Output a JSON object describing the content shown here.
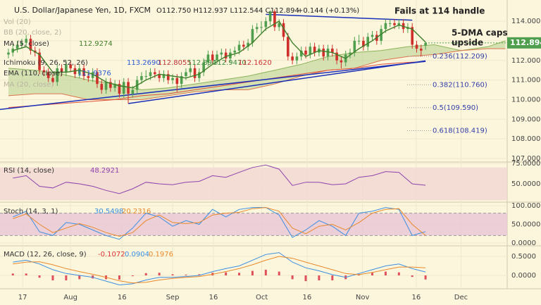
{
  "chart_data": {
    "type": "candlestick",
    "header": {
      "symbol": "U.S. Dollar/Japanese Yen, 1D, FXCM",
      "ohlc": "O112.750 H112.937 L112.544 C112.894",
      "change": "+0.144 (+0.13%)"
    },
    "annotations": [
      "Fails at 114 handle",
      "5-DMA caps",
      "upside"
    ],
    "legends": [
      {
        "name": "Vol (20)"
      },
      {
        "name": "BB (20, close, 2)"
      },
      {
        "name": "MA (5, close)"
      },
      {
        "name": "Ichimoku (9, 26, 52, 26)",
        "values": [
          "113.2690",
          "112.8055",
          "112.894",
          "112.9470",
          "112.1620"
        ]
      },
      {
        "name": "EMA (110, close)"
      },
      {
        "name": "MA (20, close)"
      }
    ],
    "xlim": [
      -1.9,
      112.4
    ],
    "xticks": [
      {
        "value": 3.2,
        "label": "17"
      },
      {
        "value": 14,
        "label": "Aug"
      },
      {
        "value": 25.6,
        "label": "16"
      },
      {
        "value": 37,
        "label": "Sep"
      },
      {
        "value": 46.2,
        "label": "16"
      },
      {
        "value": 57.1,
        "label": "Oct"
      },
      {
        "value": 67.3,
        "label": "16"
      },
      {
        "value": 79.8,
        "label": "Nov"
      },
      {
        "value": 91.9,
        "label": "16"
      },
      {
        "value": 102,
        "label": "Dec"
      }
    ],
    "price": {
      "ylim": [
        106.82,
        115.08
      ],
      "yticks": [
        {
          "value": 107,
          "label": "107.000"
        },
        {
          "value": 108,
          "label": "108.000"
        },
        {
          "value": 109,
          "label": "109.000"
        },
        {
          "value": 110,
          "label": "110.000"
        },
        {
          "value": 111,
          "label": "111.000"
        },
        {
          "value": 112,
          "label": "112.000"
        },
        {
          "value": 113,
          "label": "113.000"
        },
        {
          "value": 114,
          "label": "114.000"
        }
      ],
      "up_color": "#4f9f4f",
      "down_color": "#cf2f2a",
      "candles": {
        "open": [
          112.3,
          112.4,
          112.6,
          112.8,
          112.9,
          113.1,
          112.5,
          112.4,
          111.5,
          111.4,
          111.1,
          110.9,
          111.6,
          111.4,
          111.8,
          111.6,
          111.3,
          111.6,
          111.2,
          111.1,
          111.4,
          110.8,
          110.5,
          110.9,
          110.6,
          110.8,
          110.3,
          110.9,
          110.3,
          110.5,
          111.0,
          111.2,
          111.2,
          111.4,
          111.3,
          111.1,
          111.3,
          111.0,
          111.1,
          110.8,
          111.2,
          111.4,
          111.6,
          111.1,
          111.4,
          111.9,
          112.3,
          112.0,
          112.3,
          112.4,
          112.1,
          112.4,
          112.5,
          112.8,
          112.7,
          112.9,
          113.6,
          113.7,
          113.7,
          114.0,
          114.5,
          113.7,
          113.9,
          113.2,
          112.2,
          112.0,
          112.2,
          112.5,
          112.3,
          112.7,
          112.4,
          112.6,
          112.2,
          112.6,
          112.4,
          112.0,
          111.9,
          112.3,
          112.4,
          113.0,
          113.0,
          112.7,
          113.2,
          113.3,
          113.0,
          113.6,
          113.9,
          113.9,
          113.8,
          113.9,
          113.6,
          113.7,
          112.8,
          112.6,
          112.75
        ],
        "high": [
          112.6,
          112.8,
          113.0,
          113.1,
          113.3,
          113.3,
          112.7,
          112.6,
          111.7,
          111.6,
          111.3,
          111.8,
          111.8,
          112.0,
          112.0,
          111.8,
          111.8,
          111.8,
          111.4,
          111.6,
          111.6,
          111.0,
          111.1,
          111.1,
          111.0,
          111.0,
          111.1,
          111.1,
          110.7,
          111.2,
          111.4,
          111.5,
          111.6,
          111.6,
          111.5,
          111.5,
          111.5,
          111.3,
          111.3,
          111.4,
          111.6,
          111.8,
          111.8,
          111.6,
          112.1,
          112.5,
          112.5,
          112.5,
          112.6,
          112.6,
          112.6,
          112.7,
          113.0,
          113.0,
          113.1,
          113.8,
          113.9,
          114.0,
          114.2,
          114.55,
          114.6,
          114.1,
          114.1,
          113.4,
          112.4,
          112.4,
          112.7,
          112.7,
          112.9,
          112.9,
          112.8,
          112.8,
          112.8,
          112.8,
          112.6,
          112.2,
          112.5,
          112.6,
          113.2,
          113.3,
          113.2,
          113.4,
          113.5,
          113.5,
          113.8,
          114.1,
          114.1,
          114.1,
          114.1,
          114.1,
          113.9,
          113.9,
          113.0,
          112.8,
          112.937
        ],
        "low": [
          112.1,
          112.2,
          112.4,
          112.6,
          112.7,
          112.3,
          112.2,
          111.3,
          111.2,
          110.9,
          110.7,
          110.7,
          111.2,
          111.2,
          111.4,
          111.1,
          111.1,
          111.0,
          110.9,
          110.9,
          110.6,
          110.3,
          110.3,
          110.4,
          110.4,
          110.1,
          110.1,
          109.8,
          110.1,
          110.3,
          110.8,
          111.0,
          111.0,
          111.1,
          110.9,
          110.9,
          110.8,
          110.8,
          110.4,
          110.6,
          111.0,
          111.2,
          110.9,
          110.9,
          111.2,
          111.7,
          111.8,
          111.8,
          112.1,
          111.9,
          111.9,
          112.2,
          112.3,
          112.5,
          112.5,
          112.7,
          113.4,
          113.4,
          113.5,
          113.8,
          113.5,
          113.5,
          113.0,
          112.0,
          111.8,
          111.8,
          112.0,
          112.1,
          112.1,
          112.2,
          112.2,
          112.0,
          112.0,
          112.2,
          111.8,
          111.6,
          111.7,
          112.1,
          112.2,
          112.8,
          112.5,
          112.5,
          113.0,
          112.8,
          112.8,
          113.4,
          113.7,
          113.6,
          113.6,
          113.4,
          113.4,
          112.6,
          112.4,
          112.2,
          112.544
        ],
        "close": [
          112.4,
          112.6,
          112.8,
          112.9,
          113.1,
          112.5,
          112.4,
          111.5,
          111.4,
          111.1,
          110.9,
          111.6,
          111.4,
          111.8,
          111.6,
          111.3,
          111.6,
          111.2,
          111.1,
          111.4,
          110.8,
          110.5,
          110.9,
          110.6,
          110.8,
          110.3,
          110.9,
          110.3,
          110.5,
          111.0,
          111.2,
          111.2,
          111.4,
          111.3,
          111.1,
          111.3,
          111.0,
          111.1,
          110.8,
          111.2,
          111.4,
          111.6,
          111.1,
          111.4,
          111.9,
          112.3,
          112.0,
          112.3,
          112.4,
          112.1,
          112.4,
          112.5,
          112.8,
          112.7,
          112.9,
          113.6,
          113.7,
          113.7,
          114.0,
          114.5,
          113.7,
          113.9,
          113.2,
          112.2,
          112.0,
          112.2,
          112.5,
          112.3,
          112.7,
          112.4,
          112.6,
          112.2,
          112.6,
          112.4,
          112.0,
          111.9,
          112.3,
          112.4,
          113.0,
          113.0,
          112.7,
          113.2,
          113.3,
          113.0,
          113.6,
          113.9,
          113.9,
          113.8,
          113.9,
          113.6,
          113.7,
          112.8,
          112.6,
          112.5,
          112.894
        ]
      },
      "ma": {
        "color": "#3f7f2a",
        "x": [
          1,
          4,
          7,
          10,
          13,
          16,
          19,
          22,
          25,
          28,
          31,
          34,
          37,
          40,
          43,
          46,
          49,
          52,
          55,
          58,
          61,
          64,
          67,
          70,
          73,
          76,
          79,
          82,
          85,
          88,
          91,
          94
        ],
        "values": [
          112.5,
          112.7,
          112.3,
          111.4,
          111.4,
          111.5,
          111.3,
          110.9,
          110.7,
          110.6,
          111.0,
          111.3,
          111.2,
          111.1,
          111.3,
          111.8,
          112.2,
          112.4,
          112.9,
          113.6,
          114.0,
          112.9,
          112.2,
          112.5,
          112.4,
          112.1,
          112.6,
          113.0,
          113.5,
          113.8,
          113.6,
          112.9274
        ]
      },
      "cloud": {
        "color": "#a9c77f",
        "edge_color": "#d9764f",
        "x": [
          0,
          6,
          12,
          18,
          24,
          30,
          36,
          42,
          48,
          54,
          60,
          66,
          72,
          78,
          84,
          90,
          96,
          102,
          108,
          112
        ],
        "span_a": [
          111.6,
          111.5,
          111.3,
          111.0,
          110.8,
          110.5,
          110.6,
          110.8,
          111.0,
          111.2,
          111.5,
          111.8,
          112.2,
          112.4,
          112.5,
          112.7,
          112.8,
          112.5,
          112.7,
          113.0
        ],
        "span_b": [
          110.2,
          110.3,
          110.3,
          110.0,
          110.0,
          110.0,
          110.2,
          110.4,
          110.5,
          110.5,
          110.8,
          111.2,
          111.5,
          111.6,
          112.0,
          112.2,
          112.3,
          112.5,
          112.6,
          112.6
        ]
      },
      "ema": {
        "color": "#e0503a",
        "x": [
          0,
          6,
          12,
          18,
          24,
          30,
          36,
          42,
          48,
          54,
          60,
          66,
          72,
          78,
          84,
          90,
          94
        ],
        "values": [
          109.6,
          109.7,
          109.8,
          109.9,
          110.0,
          110.2,
          110.3,
          110.5,
          110.7,
          110.9,
          111.1,
          111.3,
          111.5,
          111.6,
          111.8,
          111.9,
          111.9376
        ]
      },
      "trend_color": "#1a2fb8",
      "trendlines": [
        {
          "x": [
            -1.9,
            94
          ],
          "y": [
            109.5,
            111.95
          ]
        },
        {
          "x": [
            27,
            94
          ],
          "y": [
            109.8,
            111.98
          ]
        },
        {
          "x": [
            58,
            91
          ],
          "y": [
            114.35,
            114.05
          ]
        }
      ],
      "fib": [
        {
          "label": "0.236(112.209)",
          "value": 112.209
        },
        {
          "label": "0.382(110.760)",
          "value": 110.76
        },
        {
          "label": "0.5(109.590)",
          "value": 109.59
        },
        {
          "label": "0.618(108.419)",
          "value": 108.419
        }
      ],
      "last_color": "#4f9f4f"
    },
    "rsi": {
      "title": "RSI (14, close)",
      "color": "#8e44ad",
      "ylim": [
        27.6,
        76.7
      ],
      "yticks": [
        {
          "value": 50,
          "label": "50.0000"
        },
        {
          "value": 75,
          "label": "75.0000"
        }
      ],
      "band": [
        30,
        70
      ],
      "x": [
        1,
        4,
        7,
        10,
        13,
        16,
        19,
        22,
        25,
        28,
        31,
        34,
        37,
        40,
        43,
        46,
        49,
        52,
        55,
        58,
        61,
        64,
        67,
        70,
        73,
        76,
        79,
        82,
        85,
        88,
        91,
        94
      ],
      "values": [
        57,
        60,
        47,
        45,
        52,
        50,
        47,
        42,
        38,
        44,
        52,
        50,
        49,
        52,
        53,
        60,
        58,
        64,
        70,
        73,
        68,
        48,
        52,
        52,
        49,
        50,
        58,
        60,
        65,
        64,
        50,
        48.2921
      ]
    },
    "stoch": {
      "title": "Stoch (14, 3, 1)",
      "ylim": [
        -7.5,
        109.4
      ],
      "yticks": [
        {
          "value": 0,
          "label": "0.0000"
        },
        {
          "value": 50,
          "label": "50.0000"
        },
        {
          "value": 100,
          "label": "100.0000"
        }
      ],
      "band": [
        20,
        80
      ],
      "x": [
        1,
        4,
        7,
        10,
        13,
        16,
        19,
        22,
        25,
        28,
        31,
        34,
        37,
        40,
        43,
        46,
        49,
        52,
        55,
        58,
        61,
        64,
        67,
        70,
        73,
        76,
        79,
        82,
        85,
        88,
        91,
        94
      ],
      "series": [
        {
          "color": "#3b8ee0",
          "values": [
            70,
            85,
            30,
            20,
            55,
            50,
            35,
            20,
            10,
            40,
            80,
            70,
            45,
            60,
            50,
            90,
            70,
            90,
            95,
            95,
            75,
            15,
            35,
            60,
            45,
            20,
            80,
            85,
            95,
            90,
            20,
            30.5498
          ]
        },
        {
          "color": "#e8892b",
          "values": [
            65,
            78,
            50,
            28,
            40,
            52,
            42,
            28,
            18,
            28,
            60,
            75,
            55,
            52,
            55,
            75,
            80,
            82,
            92,
            95,
            85,
            40,
            25,
            45,
            50,
            35,
            55,
            80,
            90,
            92,
            50,
            20.2316
          ]
        }
      ]
    },
    "macd": {
      "title": "MACD (12, 26, close, 9)",
      "ylim": [
        -0.352,
        0.778
      ],
      "yticks": [
        {
          "value": 0,
          "label": "0.0000"
        },
        {
          "value": 0.5,
          "label": "0.5000"
        }
      ],
      "x": [
        1,
        4,
        7,
        10,
        13,
        16,
        19,
        22,
        25,
        28,
        31,
        34,
        37,
        40,
        43,
        46,
        49,
        52,
        55,
        58,
        61,
        64,
        67,
        70,
        73,
        76,
        79,
        82,
        85,
        88,
        91,
        94
      ],
      "hist": {
        "color": "#e0505a",
        "values": [
          0.05,
          0.05,
          -0.06,
          -0.13,
          -0.13,
          -0.1,
          -0.08,
          -0.1,
          -0.11,
          -0.02,
          0.06,
          0.07,
          0.03,
          0.02,
          0.03,
          0.07,
          0.08,
          0.07,
          0.12,
          0.15,
          0.1,
          -0.1,
          -0.15,
          -0.13,
          -0.13,
          -0.1,
          0.03,
          0.07,
          0.1,
          0.08,
          -0.04,
          -0.1072
        ]
      },
      "series": [
        {
          "color": "#3b8ee0",
          "values": [
            0.35,
            0.4,
            0.3,
            0.15,
            0.05,
            0.0,
            -0.05,
            -0.15,
            -0.25,
            -0.22,
            -0.12,
            -0.05,
            -0.05,
            -0.03,
            0.0,
            0.1,
            0.18,
            0.25,
            0.4,
            0.55,
            0.6,
            0.35,
            0.2,
            0.12,
            0.02,
            -0.05,
            0.05,
            0.15,
            0.25,
            0.3,
            0.18,
            0.0904
          ]
        },
        {
          "color": "#e8892b",
          "values": [
            0.3,
            0.35,
            0.36,
            0.28,
            0.18,
            0.1,
            0.03,
            -0.05,
            -0.14,
            -0.2,
            -0.18,
            -0.12,
            -0.08,
            -0.05,
            -0.03,
            0.03,
            0.1,
            0.18,
            0.28,
            0.4,
            0.5,
            0.45,
            0.35,
            0.25,
            0.15,
            0.05,
            0.02,
            0.08,
            0.15,
            0.22,
            0.22,
            0.1976
          ]
        }
      ]
    }
  }
}
